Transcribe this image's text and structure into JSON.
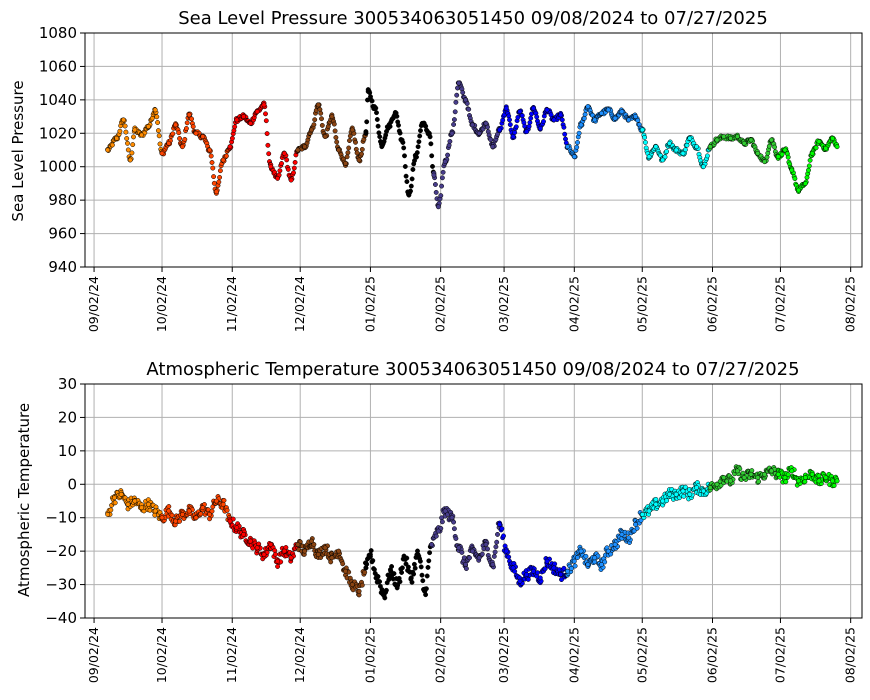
{
  "chart_data": [
    {
      "type": "scatter",
      "title": "Sea Level Pressure 300534063051450  09/08/2024 to 07/27/2025",
      "xlabel": "",
      "ylabel": "Sea Level Pressure",
      "ylim": [
        940,
        1080
      ],
      "yticks": [
        "940",
        "960",
        "980",
        "1000",
        "1020",
        "1040",
        "1060",
        "1080"
      ],
      "xlim": [
        "2024-08-29",
        "2025-08-07"
      ],
      "xticks": [
        "09/02/24",
        "10/02/24",
        "11/02/24",
        "12/02/24",
        "01/02/25",
        "02/02/25",
        "03/02/25",
        "04/02/25",
        "05/02/25",
        "06/02/25",
        "07/02/25",
        "08/02/25"
      ],
      "grid": true,
      "colors": [
        "#ff8c00",
        "#ff4500",
        "#ff0000",
        "#8b4513",
        "#000000",
        "#483d8b",
        "#0000ff",
        "#1e90ff",
        "#00ffff",
        "#32cd32",
        "#00ff00"
      ],
      "series": [
        {
          "x": [
            "2024-09-08",
            "2024-09-12",
            "2024-09-15",
            "2024-09-18",
            "2024-09-20",
            "2024-09-23",
            "2024-09-26",
            "2024-09-29",
            "2024-10-02"
          ],
          "values": [
            1010,
            1017,
            1028,
            1004,
            1022,
            1019,
            1024,
            1034,
            1008
          ]
        },
        {
          "x": [
            "2024-10-02",
            "2024-10-05",
            "2024-10-08",
            "2024-10-11",
            "2024-10-14",
            "2024-10-17",
            "2024-10-20",
            "2024-10-23",
            "2024-10-26",
            "2024-10-29",
            "2024-11-01"
          ],
          "values": [
            1008,
            1014,
            1025,
            1012,
            1031,
            1020,
            1018,
            1010,
            985,
            1004,
            1012
          ]
        },
        {
          "x": [
            "2024-11-01",
            "2024-11-04",
            "2024-11-07",
            "2024-11-10",
            "2024-11-13",
            "2024-11-16",
            "2024-11-19",
            "2024-11-22",
            "2024-11-25",
            "2024-11-28",
            "2024-12-01"
          ],
          "values": [
            1012,
            1028,
            1030,
            1026,
            1033,
            1037,
            1000,
            993,
            1008,
            992,
            1010
          ]
        },
        {
          "x": [
            "2024-12-01",
            "2024-12-04",
            "2024-12-07",
            "2024-12-10",
            "2024-12-13",
            "2024-12-16",
            "2024-12-19",
            "2024-12-22",
            "2024-12-25",
            "2024-12-28",
            "2024-12-31"
          ],
          "values": [
            1010,
            1012,
            1022,
            1037,
            1018,
            1030,
            1010,
            1002,
            1022,
            1004,
            1020
          ]
        },
        {
          "x": [
            "2024-12-31",
            "2025-01-01",
            "2025-01-04",
            "2025-01-07",
            "2025-01-10",
            "2025-01-13",
            "2025-01-16",
            "2025-01-19",
            "2025-01-22",
            "2025-01-25",
            "2025-01-28",
            "2025-01-30"
          ],
          "values": [
            1020,
            1045,
            1035,
            1013,
            1024,
            1032,
            1016,
            983,
            1006,
            1026,
            1020,
            995
          ]
        },
        {
          "x": [
            "2025-01-30",
            "2025-02-01",
            "2025-02-04",
            "2025-02-07",
            "2025-02-10",
            "2025-02-13",
            "2025-02-16",
            "2025-02-19",
            "2025-02-22",
            "2025-02-25",
            "2025-02-28"
          ],
          "values": [
            995,
            976,
            1003,
            1020,
            1050,
            1040,
            1025,
            1020,
            1026,
            1012,
            1022
          ]
        },
        {
          "x": [
            "2025-02-28",
            "2025-03-03",
            "2025-03-06",
            "2025-03-09",
            "2025-03-12",
            "2025-03-15",
            "2025-03-18",
            "2025-03-21",
            "2025-03-24",
            "2025-03-27",
            "2025-03-30"
          ],
          "values": [
            1022,
            1035,
            1018,
            1033,
            1021,
            1035,
            1023,
            1034,
            1028,
            1031,
            1012
          ]
        },
        {
          "x": [
            "2025-03-30",
            "2025-04-02",
            "2025-04-05",
            "2025-04-08",
            "2025-04-11",
            "2025-04-14",
            "2025-04-17",
            "2025-04-20",
            "2025-04-23",
            "2025-04-26",
            "2025-04-29",
            "2025-05-02"
          ],
          "values": [
            1012,
            1006,
            1025,
            1036,
            1028,
            1032,
            1034,
            1029,
            1033,
            1028,
            1030,
            1022
          ]
        },
        {
          "x": [
            "2025-05-02",
            "2025-05-05",
            "2025-05-08",
            "2025-05-11",
            "2025-05-14",
            "2025-05-17",
            "2025-05-20",
            "2025-05-23",
            "2025-05-26",
            "2025-05-29",
            "2025-06-01"
          ],
          "values": [
            1022,
            1006,
            1012,
            1004,
            1014,
            1010,
            1008,
            1017,
            1012,
            1000,
            1012
          ]
        },
        {
          "x": [
            "2025-06-01",
            "2025-06-04",
            "2025-06-07",
            "2025-06-10",
            "2025-06-13",
            "2025-06-16",
            "2025-06-19",
            "2025-06-22",
            "2025-06-25",
            "2025-06-28",
            "2025-07-01"
          ],
          "values": [
            1012,
            1016,
            1018,
            1017,
            1018,
            1014,
            1016,
            1008,
            1003,
            1016,
            1006
          ]
        },
        {
          "x": [
            "2025-07-01",
            "2025-07-04",
            "2025-07-07",
            "2025-07-10",
            "2025-07-13",
            "2025-07-16",
            "2025-07-19",
            "2025-07-22",
            "2025-07-25",
            "2025-07-27"
          ],
          "values": [
            1006,
            1010,
            998,
            986,
            990,
            1008,
            1015,
            1011,
            1017,
            1012
          ]
        }
      ]
    },
    {
      "type": "scatter",
      "title": "Atmospheric Temperature 300534063051450  09/08/2024 to 07/27/2025",
      "xlabel": "",
      "ylabel": "Atmospheric Temperature",
      "ylim": [
        -40,
        30
      ],
      "yticks": [
        "−40",
        "−30",
        "−20",
        "−10",
        "0",
        "10",
        "20",
        "30"
      ],
      "xlim": [
        "2024-08-29",
        "2025-08-07"
      ],
      "xticks": [
        "09/02/24",
        "10/02/24",
        "11/02/24",
        "12/02/24",
        "01/02/25",
        "02/02/25",
        "03/02/25",
        "04/02/25",
        "05/02/25",
        "06/02/25",
        "07/02/25",
        "08/02/25"
      ],
      "grid": true,
      "colors": [
        "#ff8c00",
        "#ff4500",
        "#ff0000",
        "#8b4513",
        "#000000",
        "#483d8b",
        "#0000ff",
        "#1e90ff",
        "#00ffff",
        "#32cd32",
        "#00ff00"
      ],
      "series": [
        {
          "x": [
            "2024-09-08",
            "2024-09-11",
            "2024-09-14",
            "2024-09-17",
            "2024-09-20",
            "2024-09-23",
            "2024-09-26",
            "2024-09-29",
            "2024-10-02"
          ],
          "values": [
            -9,
            -4,
            -3,
            -6,
            -5,
            -7,
            -6,
            -8,
            -10
          ]
        },
        {
          "x": [
            "2024-10-02",
            "2024-10-05",
            "2024-10-08",
            "2024-10-11",
            "2024-10-14",
            "2024-10-17",
            "2024-10-20",
            "2024-10-23",
            "2024-10-26",
            "2024-10-29",
            "2024-11-01"
          ],
          "values": [
            -10,
            -8,
            -11,
            -9,
            -8,
            -10,
            -7,
            -9,
            -5,
            -6,
            -11
          ]
        },
        {
          "x": [
            "2024-11-01",
            "2024-11-04",
            "2024-11-07",
            "2024-11-10",
            "2024-11-13",
            "2024-11-16",
            "2024-11-19",
            "2024-11-22",
            "2024-11-25",
            "2024-11-28",
            "2024-12-01"
          ],
          "values": [
            -11,
            -13,
            -15,
            -17,
            -19,
            -21,
            -18,
            -23,
            -20,
            -22,
            -18
          ]
        },
        {
          "x": [
            "2024-12-01",
            "2024-12-04",
            "2024-12-07",
            "2024-12-10",
            "2024-12-13",
            "2024-12-16",
            "2024-12-19",
            "2024-12-22",
            "2024-12-25",
            "2024-12-28",
            "2024-12-31"
          ],
          "values": [
            -18,
            -20,
            -17,
            -21,
            -19,
            -22,
            -20,
            -26,
            -30,
            -32,
            -25
          ]
        },
        {
          "x": [
            "2024-12-31",
            "2025-01-02",
            "2025-01-05",
            "2025-01-08",
            "2025-01-11",
            "2025-01-14",
            "2025-01-17",
            "2025-01-20",
            "2025-01-23",
            "2025-01-26",
            "2025-01-29"
          ],
          "values": [
            -25,
            -21,
            -28,
            -33,
            -26,
            -30,
            -22,
            -28,
            -21,
            -32,
            -18
          ]
        },
        {
          "x": [
            "2025-01-29",
            "2025-02-01",
            "2025-02-04",
            "2025-02-07",
            "2025-02-10",
            "2025-02-13",
            "2025-02-16",
            "2025-02-19",
            "2025-02-22",
            "2025-02-25",
            "2025-02-28"
          ],
          "values": [
            -18,
            -14,
            -8,
            -10,
            -19,
            -24,
            -20,
            -22,
            -18,
            -24,
            -12
          ]
        },
        {
          "x": [
            "2025-02-28",
            "2025-03-03",
            "2025-03-06",
            "2025-03-09",
            "2025-03-12",
            "2025-03-15",
            "2025-03-18",
            "2025-03-21",
            "2025-03-24",
            "2025-03-27",
            "2025-03-30"
          ],
          "values": [
            -12,
            -20,
            -25,
            -29,
            -27,
            -26,
            -28,
            -23,
            -25,
            -27,
            -26
          ]
        },
        {
          "x": [
            "2025-03-30",
            "2025-04-02",
            "2025-04-05",
            "2025-04-08",
            "2025-04-11",
            "2025-04-14",
            "2025-04-17",
            "2025-04-20",
            "2025-04-23",
            "2025-04-26",
            "2025-04-29",
            "2025-05-02"
          ],
          "values": [
            -26,
            -23,
            -20,
            -24,
            -22,
            -24,
            -20,
            -18,
            -15,
            -16,
            -12,
            -9
          ]
        },
        {
          "x": [
            "2025-05-02",
            "2025-05-05",
            "2025-05-08",
            "2025-05-11",
            "2025-05-14",
            "2025-05-17",
            "2025-05-20",
            "2025-05-23",
            "2025-05-26",
            "2025-05-29",
            "2025-06-01"
          ],
          "values": [
            -9,
            -8,
            -6,
            -5,
            -3,
            -3,
            -2,
            -3,
            -1,
            -2,
            -1
          ]
        },
        {
          "x": [
            "2025-06-01",
            "2025-06-04",
            "2025-06-07",
            "2025-06-10",
            "2025-06-13",
            "2025-06-16",
            "2025-06-19",
            "2025-06-22",
            "2025-06-25",
            "2025-06-28",
            "2025-07-01"
          ],
          "values": [
            -1,
            0,
            2,
            1,
            4,
            2,
            3,
            2,
            3,
            4,
            3
          ]
        },
        {
          "x": [
            "2025-07-01",
            "2025-07-04",
            "2025-07-07",
            "2025-07-10",
            "2025-07-13",
            "2025-07-16",
            "2025-07-19",
            "2025-07-22",
            "2025-07-25",
            "2025-07-27"
          ],
          "values": [
            3,
            2,
            4,
            1,
            2,
            3,
            1,
            2,
            1,
            1
          ]
        }
      ]
    }
  ]
}
